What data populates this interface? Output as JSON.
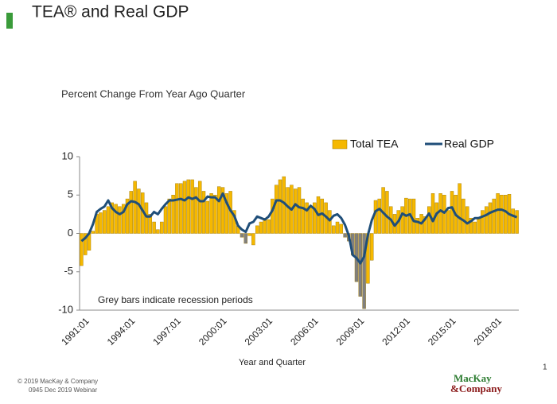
{
  "header": {
    "title": "TEA® and Real GDP"
  },
  "chart_data": {
    "type": "bar",
    "subtitle": "Percent Change From Year Ago Quarter",
    "x_label": "Year and Quarter",
    "annotation": "Grey bars indicate recession periods",
    "categories": [
      "1991:01",
      null,
      null,
      null,
      null,
      null,
      null,
      null,
      null,
      null,
      null,
      null,
      "1994:01",
      null,
      null,
      null,
      null,
      null,
      null,
      null,
      null,
      null,
      null,
      null,
      "1997:01",
      null,
      null,
      null,
      null,
      null,
      null,
      null,
      null,
      null,
      null,
      null,
      "2000:01",
      null,
      null,
      null,
      null,
      null,
      null,
      null,
      null,
      null,
      null,
      null,
      "2003:01",
      null,
      null,
      null,
      null,
      null,
      null,
      null,
      null,
      null,
      null,
      null,
      "2006:01",
      null,
      null,
      null,
      null,
      null,
      null,
      null,
      null,
      null,
      null,
      null,
      "2009:01",
      null,
      null,
      null,
      null,
      null,
      null,
      null,
      null,
      null,
      null,
      null,
      "2012:01",
      null,
      null,
      null,
      null,
      null,
      null,
      null,
      null,
      null,
      null,
      null,
      "2015:01",
      null,
      null,
      null,
      null,
      null,
      null,
      null,
      null,
      null,
      null,
      null,
      "2018:01",
      null,
      null,
      null,
      null,
      null,
      null
    ],
    "ylim": [
      -10,
      10
    ],
    "yticks": [
      -10,
      -5,
      0,
      5,
      10
    ],
    "grid": false,
    "legend": "top-right",
    "series": [
      {
        "name": "Total TEA",
        "type": "bar",
        "color": "#f5b800",
        "values": [
          -4.2,
          -2.8,
          -2.2,
          0.3,
          2.5,
          2.7,
          3.0,
          3.5,
          4.0,
          3.8,
          3.5,
          3.8,
          4.5,
          5.5,
          6.8,
          5.8,
          5.3,
          4.0,
          2.5,
          1.5,
          0.5,
          1.5,
          3.5,
          4.5,
          5.0,
          6.5,
          6.5,
          6.8,
          7.0,
          7.0,
          6.0,
          6.8,
          5.5,
          4.2,
          5.2,
          5.0,
          6.1,
          6.0,
          5.2,
          5.5,
          3.0,
          1.0,
          -0.5,
          -1.3,
          -0.3,
          -1.5,
          1.0,
          1.5,
          2.0,
          1.8,
          4.5,
          6.3,
          7.0,
          7.4,
          6.0,
          6.3,
          5.8,
          6.0,
          4.5,
          4.0,
          3.5,
          4.0,
          4.8,
          4.5,
          4.0,
          3.0,
          1.0,
          1.5,
          1.2,
          -0.5,
          -1.0,
          -2.8,
          -6.3,
          -8.2,
          -9.8,
          -6.5,
          -3.5,
          4.3,
          4.5,
          6.0,
          5.5,
          3.5,
          2.5,
          3.0,
          3.5,
          4.6,
          4.5,
          4.5,
          2.0,
          2.5,
          2.2,
          3.5,
          5.2,
          4.0,
          5.2,
          5.0,
          3.0,
          5.5,
          5.0,
          6.5,
          4.5,
          3.5,
          2.0,
          1.5,
          2.0,
          3.0,
          3.5,
          4.0,
          4.5,
          5.2,
          5.0,
          5.0,
          5.1,
          3.2,
          3.0
        ],
        "colors": [
          "#f5b800",
          "#f5b800",
          "#f5b800",
          "#f5b800",
          "#f5b800",
          "#f5b800",
          "#f5b800",
          "#f5b800",
          "#f5b800",
          "#f5b800",
          "#f5b800",
          "#f5b800",
          "#f5b800",
          "#f5b800",
          "#f5b800",
          "#f5b800",
          "#f5b800",
          "#f5b800",
          "#f5b800",
          "#f5b800",
          "#f5b800",
          "#f5b800",
          "#f5b800",
          "#f5b800",
          "#f5b800",
          "#f5b800",
          "#f5b800",
          "#f5b800",
          "#f5b800",
          "#f5b800",
          "#f5b800",
          "#f5b800",
          "#f5b800",
          "#f5b800",
          "#f5b800",
          "#f5b800",
          "#f5b800",
          "#f5b800",
          "#f5b800",
          "#f5b800",
          "#f5b800",
          "#f5b800",
          "#808080",
          "#808080",
          "#f5b800",
          "#f5b800",
          "#f5b800",
          "#f5b800",
          "#f5b800",
          "#f5b800",
          "#f5b800",
          "#f5b800",
          "#f5b800",
          "#f5b800",
          "#f5b800",
          "#f5b800",
          "#f5b800",
          "#f5b800",
          "#f5b800",
          "#f5b800",
          "#f5b800",
          "#f5b800",
          "#f5b800",
          "#f5b800",
          "#f5b800",
          "#f5b800",
          "#f5b800",
          "#f5b800",
          "#f5b800",
          "#808080",
          "#808080",
          "#808080",
          "#808080",
          "#808080",
          "#808080",
          "#f5b800",
          "#f5b800",
          "#f5b800",
          "#f5b800",
          "#f5b800",
          "#f5b800",
          "#f5b800",
          "#f5b800",
          "#f5b800",
          "#f5b800",
          "#f5b800",
          "#f5b800",
          "#f5b800",
          "#f5b800",
          "#f5b800",
          "#f5b800",
          "#f5b800",
          "#f5b800",
          "#f5b800",
          "#f5b800",
          "#f5b800",
          "#f5b800",
          "#f5b800",
          "#f5b800",
          "#f5b800",
          "#f5b800",
          "#f5b800",
          "#f5b800",
          "#f5b800",
          "#f5b800",
          "#f5b800",
          "#f5b800",
          "#f5b800",
          "#f5b800",
          "#f5b800",
          "#f5b800",
          "#f5b800",
          "#f5b800",
          "#f5b800",
          "#f5b800"
        ]
      },
      {
        "name": "Real GDP",
        "type": "line",
        "color": "#1f4e79",
        "values": [
          -1.0,
          -0.6,
          0.0,
          1.2,
          2.8,
          3.2,
          3.5,
          4.3,
          3.3,
          2.8,
          2.5,
          2.8,
          3.8,
          4.2,
          4.1,
          3.8,
          3.0,
          2.2,
          2.2,
          2.8,
          2.5,
          3.2,
          3.8,
          4.3,
          4.3,
          4.4,
          4.5,
          4.3,
          4.7,
          4.5,
          4.7,
          4.2,
          4.2,
          4.8,
          4.7,
          4.7,
          4.2,
          5.2,
          4.0,
          3.0,
          2.3,
          1.0,
          0.5,
          0.2,
          1.3,
          1.5,
          2.2,
          2.0,
          1.8,
          2.2,
          3.0,
          4.3,
          4.3,
          4.0,
          3.5,
          3.1,
          3.8,
          3.4,
          3.3,
          3.0,
          3.6,
          3.2,
          2.4,
          2.6,
          2.2,
          1.7,
          2.3,
          2.5,
          2.0,
          1.1,
          -0.3,
          -2.8,
          -3.2,
          -3.9,
          -3.0,
          -0.2,
          1.7,
          2.9,
          3.2,
          2.7,
          2.2,
          1.8,
          1.0,
          1.6,
          2.6,
          2.3,
          2.5,
          1.6,
          1.5,
          1.3,
          1.9,
          2.6,
          1.6,
          2.6,
          3.0,
          2.7,
          3.3,
          3.4,
          2.4,
          2.0,
          1.7,
          1.3,
          1.6,
          2.0,
          2.0,
          2.2,
          2.4,
          2.7,
          2.9,
          3.1,
          3.1,
          2.9,
          2.5,
          2.3,
          2.1
        ]
      }
    ]
  },
  "footer": {
    "copyright": "© 2019 MacKay & Company",
    "event": "0945 Dec 2019 Webinar",
    "logo_top": "MacKay",
    "logo_bottom": "&Company",
    "page_number": 1
  }
}
